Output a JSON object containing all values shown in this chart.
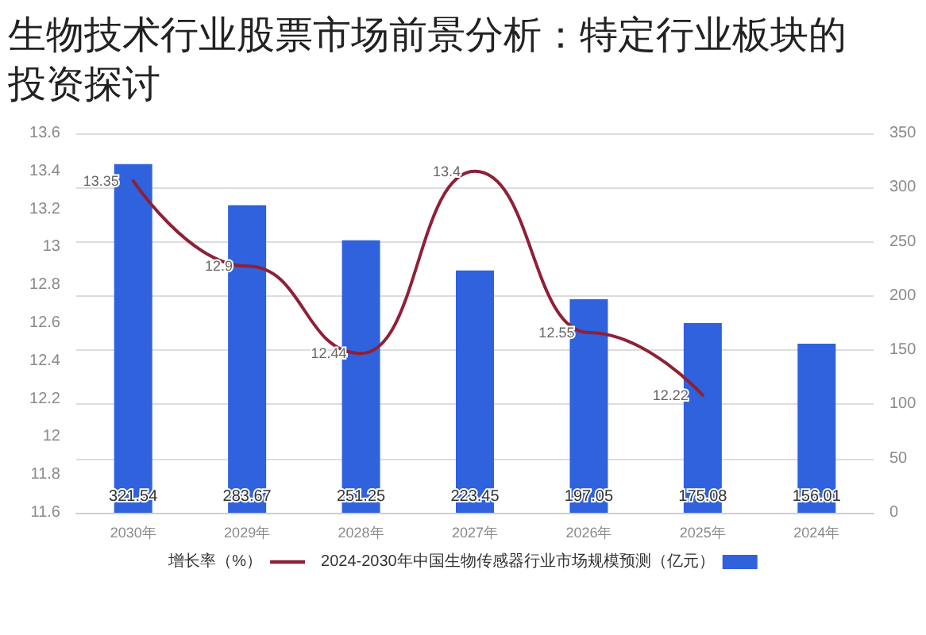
{
  "chart_data": {
    "type": "bar",
    "title": "生物技术行业股票市场前景分析：特定行业板块的投资探讨",
    "categories": [
      "2030年",
      "2029年",
      "2028年",
      "2027年",
      "2026年",
      "2025年",
      "2024年"
    ],
    "series": [
      {
        "name": "增长率（%）",
        "type": "line",
        "color": "#8e2037",
        "values": [
          13.35,
          12.9,
          12.44,
          13.4,
          12.55,
          12.22,
          null
        ]
      },
      {
        "name": "2024-2030年中国生物传感器行业市场规模预测（亿元）",
        "axis": "y2",
        "color": "#2f62dc",
        "values": [
          321.54,
          283.67,
          251.25,
          223.45,
          197.05,
          175.08,
          156.01
        ]
      }
    ],
    "ylim": [
      11.6,
      13.6
    ],
    "yticks": [
      11.6,
      11.8,
      12,
      12.2,
      12.4,
      12.6,
      12.8,
      13,
      13.2,
      13.4,
      13.6
    ],
    "y2lim": [
      0,
      350
    ],
    "y2ticks": [
      0,
      50,
      100,
      150,
      200,
      250,
      300,
      350
    ],
    "data_labels": true,
    "grid": true,
    "legend": "bottom",
    "marker": "none",
    "line_style": "solid"
  }
}
